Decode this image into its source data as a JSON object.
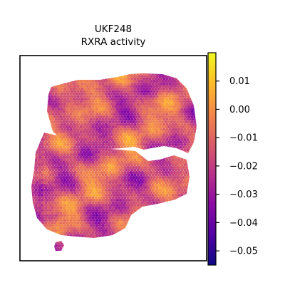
{
  "chart_data": {
    "type": "heatmap",
    "title": "UKF248",
    "subtitle": "RXRA activity",
    "xlabel": "",
    "ylabel": "",
    "colormap": "plasma",
    "colormap_stops": [
      "#0d0887",
      "#5302a3",
      "#8b0aa5",
      "#b83289",
      "#db5c68",
      "#f48849",
      "#febd2a",
      "#f0f921"
    ],
    "color_range": [
      -0.055,
      0.02
    ],
    "colorbar_ticks": [
      {
        "value": 0.01,
        "label": "0.01"
      },
      {
        "value": 0.0,
        "label": "0.00"
      },
      {
        "value": -0.01,
        "label": "−0.01"
      },
      {
        "value": -0.02,
        "label": "−0.02"
      },
      {
        "value": -0.03,
        "label": "−0.03"
      },
      {
        "value": -0.04,
        "label": "−0.04"
      },
      {
        "value": -0.05,
        "label": "−0.05"
      }
    ],
    "axes_ticks_visible": false,
    "grid": false,
    "description_of_values": "spatial transcriptomics spots colored by activity score; most spots between -0.04 and 0.01, mean approx -0.02"
  }
}
